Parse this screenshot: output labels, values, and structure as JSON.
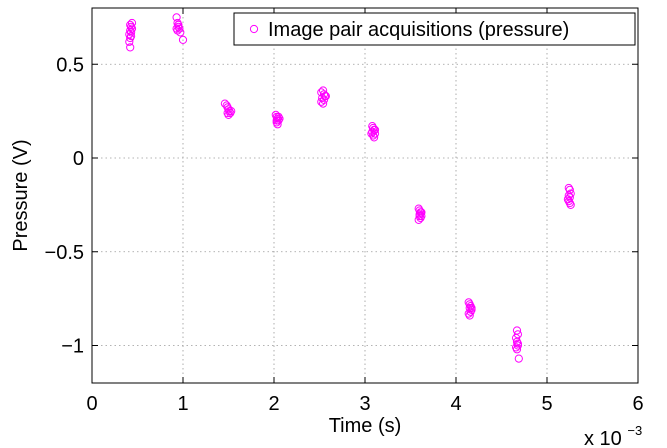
{
  "chart_data": {
    "type": "scatter",
    "title": "",
    "xlabel": "Time (s)",
    "ylabel": "Pressure (V)",
    "x_multiplier_label": "x 10",
    "x_multiplier_exponent": "−3",
    "xlim": [
      0,
      6
    ],
    "ylim": [
      -1.2,
      0.8
    ],
    "grid": true,
    "legend_position": "top-right",
    "x_ticks": [
      0,
      1,
      2,
      3,
      4,
      5,
      6
    ],
    "x_tick_labels": [
      "0",
      "1",
      "2",
      "3",
      "4",
      "5",
      "6"
    ],
    "y_ticks": [
      -1,
      -0.5,
      0,
      0.5
    ],
    "y_tick_labels": [
      "−1",
      "−0.5",
      "0",
      "0.5"
    ],
    "marker_color": "#ff00ff",
    "series": [
      {
        "name": "Image pair acquisitions (pressure)",
        "points": [
          [
            0.42,
            0.59
          ],
          [
            0.41,
            0.62
          ],
          [
            0.42,
            0.64
          ],
          [
            0.43,
            0.65
          ],
          [
            0.41,
            0.66
          ],
          [
            0.43,
            0.67
          ],
          [
            0.42,
            0.68
          ],
          [
            0.44,
            0.69
          ],
          [
            0.43,
            0.7
          ],
          [
            0.42,
            0.71
          ],
          [
            0.44,
            0.72
          ],
          [
            0.93,
            0.75
          ],
          [
            0.94,
            0.72
          ],
          [
            0.95,
            0.7
          ],
          [
            0.96,
            0.69
          ],
          [
            0.94,
            0.68
          ],
          [
            0.97,
            0.67
          ],
          [
            0.95,
            0.71
          ],
          [
            0.93,
            0.69
          ],
          [
            1.0,
            0.63
          ],
          [
            1.46,
            0.29
          ],
          [
            1.48,
            0.28
          ],
          [
            1.49,
            0.27
          ],
          [
            1.5,
            0.26
          ],
          [
            1.51,
            0.25
          ],
          [
            1.52,
            0.24
          ],
          [
            1.5,
            0.23
          ],
          [
            1.53,
            0.25
          ],
          [
            1.49,
            0.24
          ],
          [
            2.02,
            0.23
          ],
          [
            2.03,
            0.22
          ],
          [
            2.04,
            0.21
          ],
          [
            2.05,
            0.2
          ],
          [
            2.03,
            0.19
          ],
          [
            2.06,
            0.21
          ],
          [
            2.04,
            0.18
          ],
          [
            2.05,
            0.22
          ],
          [
            2.03,
            0.2
          ],
          [
            2.52,
            0.35
          ],
          [
            2.54,
            0.36
          ],
          [
            2.55,
            0.34
          ],
          [
            2.56,
            0.33
          ],
          [
            2.53,
            0.32
          ],
          [
            2.55,
            0.31
          ],
          [
            2.54,
            0.29
          ],
          [
            2.57,
            0.33
          ],
          [
            2.52,
            0.3
          ],
          [
            3.08,
            0.17
          ],
          [
            3.09,
            0.16
          ],
          [
            3.1,
            0.15
          ],
          [
            3.08,
            0.14
          ],
          [
            3.11,
            0.13
          ],
          [
            3.09,
            0.12
          ],
          [
            3.1,
            0.11
          ],
          [
            3.07,
            0.13
          ],
          [
            3.11,
            0.15
          ],
          [
            3.59,
            -0.27
          ],
          [
            3.6,
            -0.28
          ],
          [
            3.61,
            -0.29
          ],
          [
            3.6,
            -0.3
          ],
          [
            3.62,
            -0.31
          ],
          [
            3.61,
            -0.32
          ],
          [
            3.59,
            -0.33
          ],
          [
            3.62,
            -0.29
          ],
          [
            3.6,
            -0.31
          ],
          [
            4.14,
            -0.77
          ],
          [
            4.15,
            -0.78
          ],
          [
            4.16,
            -0.79
          ],
          [
            4.15,
            -0.8
          ],
          [
            4.17,
            -0.81
          ],
          [
            4.16,
            -0.82
          ],
          [
            4.14,
            -0.83
          ],
          [
            4.15,
            -0.84
          ],
          [
            4.17,
            -0.8
          ],
          [
            4.67,
            -0.92
          ],
          [
            4.68,
            -0.94
          ],
          [
            4.66,
            -0.96
          ],
          [
            4.67,
            -0.98
          ],
          [
            4.68,
            -1.0
          ],
          [
            4.66,
            -1.01
          ],
          [
            4.67,
            -1.02
          ],
          [
            4.68,
            -0.99
          ],
          [
            4.69,
            -1.07
          ],
          [
            5.24,
            -0.16
          ],
          [
            5.25,
            -0.17
          ],
          [
            5.26,
            -0.19
          ],
          [
            5.24,
            -0.2
          ],
          [
            5.25,
            -0.21
          ],
          [
            5.23,
            -0.22
          ],
          [
            5.24,
            -0.23
          ],
          [
            5.25,
            -0.24
          ],
          [
            5.26,
            -0.25
          ]
        ]
      }
    ]
  }
}
